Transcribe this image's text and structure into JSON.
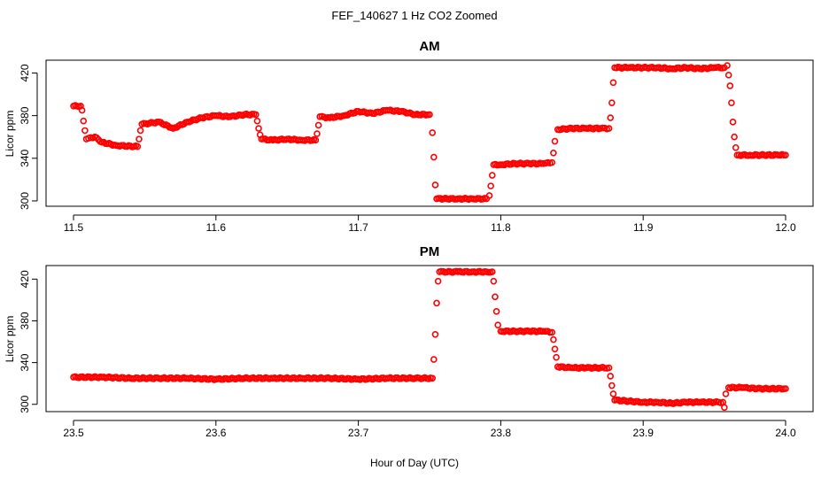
{
  "figure": {
    "title": "FEF_140627  1 Hz CO2 Zoomed",
    "xlabel": "Hour of Day (UTC)",
    "point_color": "#ff0000"
  },
  "chart_data": [
    {
      "type": "scatter",
      "title": "AM",
      "ylabel": "Licor ppm",
      "xlabel": "Hour of Day (UTC)",
      "xlim": [
        11.5,
        12.0
      ],
      "ylim": [
        295,
        432
      ],
      "x_ticks": [
        "11.5",
        "11.6",
        "11.7",
        "11.8",
        "11.9",
        "12.0"
      ],
      "y_ticks": [
        "300",
        "340",
        "380",
        "420"
      ],
      "grid": false,
      "series": [
        {
          "color": "#ff0000",
          "points": [
            [
              11.5,
              389
            ],
            [
              11.505,
              389
            ],
            [
              11.506,
              385
            ],
            [
              11.507,
              375
            ],
            [
              11.508,
              366
            ],
            [
              11.509,
              358
            ],
            [
              11.515,
              360
            ],
            [
              11.52,
              355
            ],
            [
              11.53,
              352
            ],
            [
              11.545,
              351
            ],
            [
              11.546,
              358
            ],
            [
              11.547,
              366
            ],
            [
              11.548,
              372
            ],
            [
              11.56,
              374
            ],
            [
              11.57,
              368
            ],
            [
              11.58,
              374
            ],
            [
              11.59,
              378
            ],
            [
              11.6,
              380
            ],
            [
              11.61,
              379
            ],
            [
              11.62,
              381
            ],
            [
              11.628,
              381
            ],
            [
              11.629,
              375
            ],
            [
              11.63,
              368
            ],
            [
              11.631,
              362
            ],
            [
              11.632,
              358
            ],
            [
              11.64,
              357
            ],
            [
              11.65,
              358
            ],
            [
              11.66,
              357
            ],
            [
              11.67,
              357
            ],
            [
              11.671,
              363
            ],
            [
              11.672,
              371
            ],
            [
              11.673,
              379
            ],
            [
              11.68,
              378
            ],
            [
              11.69,
              380
            ],
            [
              11.7,
              384
            ],
            [
              11.71,
              382
            ],
            [
              11.72,
              385
            ],
            [
              11.73,
              384
            ],
            [
              11.74,
              381
            ],
            [
              11.75,
              381
            ],
            [
              11.752,
              364
            ],
            [
              11.753,
              341
            ],
            [
              11.754,
              315
            ],
            [
              11.755,
              302
            ],
            [
              11.76,
              302
            ],
            [
              11.77,
              302
            ],
            [
              11.78,
              302
            ],
            [
              11.79,
              302
            ],
            [
              11.792,
              305
            ],
            [
              11.793,
              314
            ],
            [
              11.794,
              324
            ],
            [
              11.795,
              334
            ],
            [
              11.8,
              334
            ],
            [
              11.81,
              335
            ],
            [
              11.82,
              335
            ],
            [
              11.83,
              335
            ],
            [
              11.836,
              336
            ],
            [
              11.837,
              345
            ],
            [
              11.838,
              356
            ],
            [
              11.84,
              367
            ],
            [
              11.85,
              368
            ],
            [
              11.86,
              368
            ],
            [
              11.87,
              368
            ],
            [
              11.876,
              368
            ],
            [
              11.877,
              378
            ],
            [
              11.878,
              392
            ],
            [
              11.879,
              411
            ],
            [
              11.88,
              425
            ],
            [
              11.89,
              425
            ],
            [
              11.9,
              425
            ],
            [
              11.91,
              425
            ],
            [
              11.92,
              424
            ],
            [
              11.93,
              425
            ],
            [
              11.94,
              424
            ],
            [
              11.95,
              425
            ],
            [
              11.957,
              425
            ],
            [
              11.959,
              427
            ],
            [
              11.96,
              418
            ],
            [
              11.961,
              408
            ],
            [
              11.962,
              392
            ],
            [
              11.963,
              374
            ],
            [
              11.964,
              360
            ],
            [
              11.965,
              350
            ],
            [
              11.966,
              343
            ],
            [
              11.975,
              343
            ],
            [
              11.985,
              343
            ],
            [
              11.995,
              343
            ],
            [
              12.0,
              343
            ]
          ]
        }
      ]
    },
    {
      "type": "scatter",
      "title": "PM",
      "ylabel": "Licor ppm",
      "xlabel": "Hour of Day (UTC)",
      "xlim": [
        23.5,
        24.0
      ],
      "ylim": [
        293,
        433
      ],
      "x_ticks": [
        "23.5",
        "23.6",
        "23.7",
        "23.8",
        "23.9",
        "24.0"
      ],
      "y_ticks": [
        "300",
        "340",
        "380",
        "420"
      ],
      "grid": false,
      "series": [
        {
          "color": "#ff0000",
          "points": [
            [
              23.5,
              326
            ],
            [
              23.52,
              326
            ],
            [
              23.54,
              325
            ],
            [
              23.56,
              325
            ],
            [
              23.58,
              325
            ],
            [
              23.6,
              324
            ],
            [
              23.62,
              325
            ],
            [
              23.64,
              325
            ],
            [
              23.66,
              325
            ],
            [
              23.68,
              325
            ],
            [
              23.7,
              324
            ],
            [
              23.72,
              325
            ],
            [
              23.74,
              325
            ],
            [
              23.752,
              325
            ],
            [
              23.753,
              343
            ],
            [
              23.754,
              367
            ],
            [
              23.755,
              397
            ],
            [
              23.756,
              418
            ],
            [
              23.757,
              427
            ],
            [
              23.77,
              427
            ],
            [
              23.78,
              427
            ],
            [
              23.79,
              427
            ],
            [
              23.794,
              427
            ],
            [
              23.795,
              418
            ],
            [
              23.796,
              403
            ],
            [
              23.797,
              389
            ],
            [
              23.798,
              376
            ],
            [
              23.8,
              370
            ],
            [
              23.81,
              370
            ],
            [
              23.82,
              370
            ],
            [
              23.83,
              370
            ],
            [
              23.836,
              369
            ],
            [
              23.837,
              362
            ],
            [
              23.838,
              353
            ],
            [
              23.839,
              345
            ],
            [
              23.84,
              336
            ],
            [
              23.85,
              335
            ],
            [
              23.86,
              335
            ],
            [
              23.87,
              335
            ],
            [
              23.876,
              335
            ],
            [
              23.877,
              327
            ],
            [
              23.878,
              318
            ],
            [
              23.879,
              310
            ],
            [
              23.88,
              304
            ],
            [
              23.89,
              303
            ],
            [
              23.9,
              302
            ],
            [
              23.91,
              302
            ],
            [
              23.92,
              301
            ],
            [
              23.93,
              302
            ],
            [
              23.94,
              302
            ],
            [
              23.95,
              302
            ],
            [
              23.956,
              302
            ],
            [
              23.957,
              297
            ],
            [
              23.958,
              310
            ],
            [
              23.96,
              316
            ],
            [
              23.97,
              316
            ],
            [
              23.98,
              315
            ],
            [
              23.99,
              315
            ],
            [
              24.0,
              315
            ]
          ]
        }
      ]
    }
  ]
}
